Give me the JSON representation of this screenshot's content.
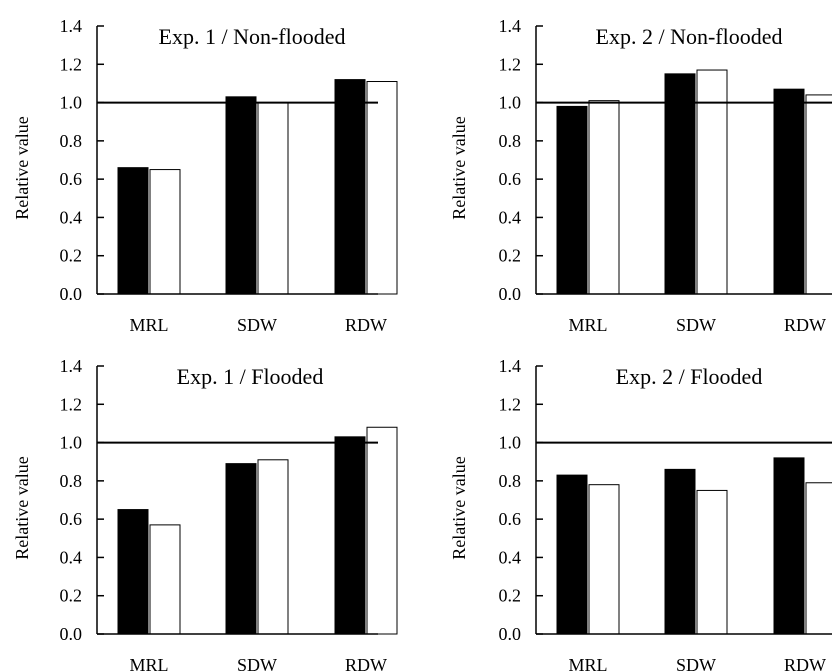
{
  "colors": {
    "series_filled": "#000000",
    "series_open": "#ffffff",
    "axis": "#000000",
    "background": "#ffffff"
  },
  "chart_data": [
    {
      "type": "bar",
      "title": "Exp. 1 / Non-flooded",
      "xlabel": "",
      "ylabel": "Relative value",
      "categories": [
        "MRL",
        "SDW",
        "RDW"
      ],
      "series": [
        {
          "values": [
            0.66,
            1.03,
            1.12
          ]
        },
        {
          "values": [
            0.65,
            1.0,
            1.11
          ]
        }
      ],
      "ylim": [
        0,
        1.4
      ],
      "yticks": [
        "0.0",
        "0.2",
        "0.4",
        "0.6",
        "0.8",
        "1.0",
        "1.2",
        "1.4"
      ],
      "reference_line": 1.0
    },
    {
      "type": "bar",
      "title": "Exp. 2 / Non-flooded",
      "xlabel": "",
      "ylabel": "Relative value",
      "categories": [
        "MRL",
        "SDW",
        "RDW"
      ],
      "series": [
        {
          "values": [
            0.98,
            1.15,
            1.07
          ]
        },
        {
          "values": [
            1.01,
            1.17,
            1.04
          ]
        }
      ],
      "ylim": [
        0,
        1.4
      ],
      "yticks": [
        "0.0",
        "0.2",
        "0.4",
        "0.6",
        "0.8",
        "1.0",
        "1.2",
        "1.4"
      ],
      "reference_line": 1.0
    },
    {
      "type": "bar",
      "title": "Exp. 1 / Flooded",
      "xlabel": "",
      "ylabel": "Relative value",
      "categories": [
        "MRL",
        "SDW",
        "RDW"
      ],
      "series": [
        {
          "values": [
            0.65,
            0.89,
            1.03
          ]
        },
        {
          "values": [
            0.57,
            0.91,
            1.08
          ]
        }
      ],
      "ylim": [
        0,
        1.4
      ],
      "yticks": [
        "0.0",
        "0.2",
        "0.4",
        "0.6",
        "0.8",
        "1.0",
        "1.2",
        "1.4"
      ],
      "reference_line": 1.0
    },
    {
      "type": "bar",
      "title": "Exp. 2 / Flooded",
      "xlabel": "",
      "ylabel": "Relative value",
      "categories": [
        "MRL",
        "SDW",
        "RDW"
      ],
      "series": [
        {
          "values": [
            0.83,
            0.86,
            0.92
          ]
        },
        {
          "values": [
            0.78,
            0.75,
            0.79
          ]
        }
      ],
      "ylim": [
        0,
        1.4
      ],
      "yticks": [
        "0.0",
        "0.2",
        "0.4",
        "0.6",
        "0.8",
        "1.0",
        "1.2",
        "1.4"
      ],
      "reference_line": 1.0
    }
  ]
}
